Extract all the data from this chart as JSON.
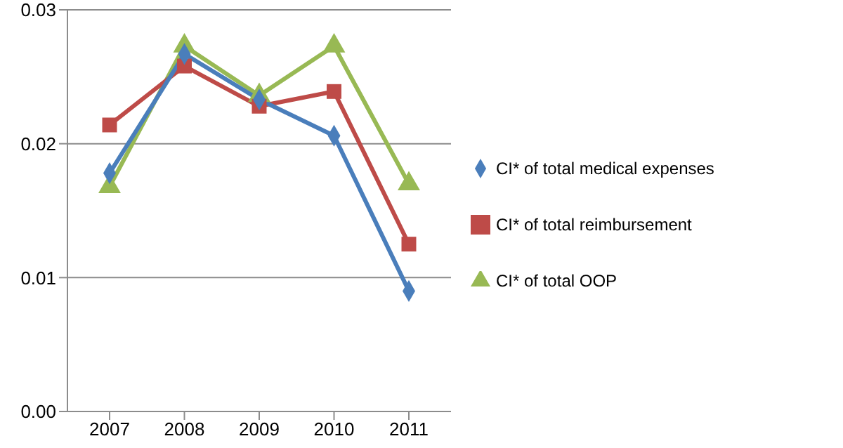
{
  "chart_data": {
    "type": "line",
    "categories": [
      "2007",
      "2008",
      "2009",
      "2010",
      "2011"
    ],
    "series": [
      {
        "name": "CI* of total medical expenses",
        "color": "#4a7ebb",
        "marker": "diamond",
        "values": [
          0.0178,
          0.0267,
          0.0233,
          0.0206,
          0.009
        ]
      },
      {
        "name": "CI* of total reimbursement",
        "color": "#be4b48",
        "marker": "square",
        "values": [
          0.0214,
          0.0258,
          0.0228,
          0.0239,
          0.0125
        ]
      },
      {
        "name": "CI* of total OOP",
        "color": "#98b954",
        "marker": "triangle",
        "values": [
          0.0168,
          0.0273,
          0.0236,
          0.0273,
          0.017
        ]
      }
    ],
    "ylim": [
      0,
      0.03
    ],
    "yticks": [
      {
        "value": 0,
        "label": "0.00"
      },
      {
        "value": 0.01,
        "label": "0.01"
      },
      {
        "value": 0.02,
        "label": "0.02"
      },
      {
        "value": 0.03,
        "label": "0.03"
      }
    ],
    "grid": "y",
    "legend": "right",
    "line_style": "solid"
  }
}
